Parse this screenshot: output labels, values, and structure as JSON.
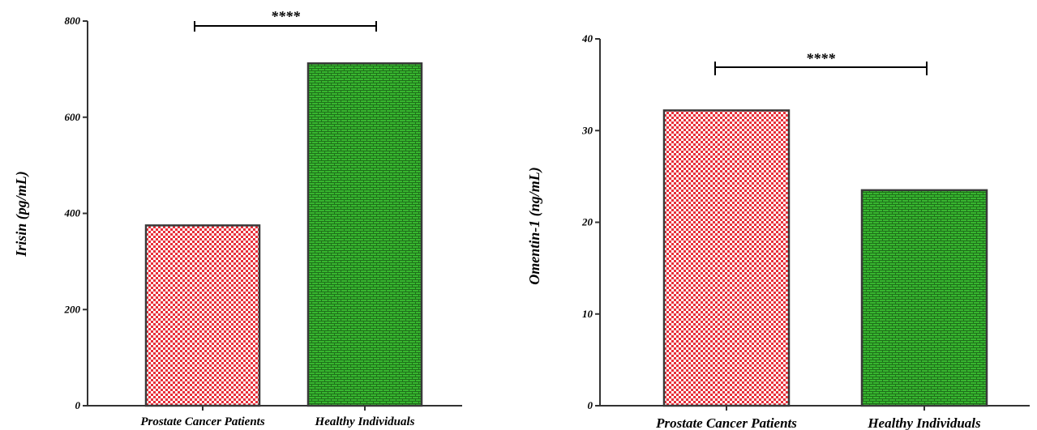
{
  "chart_data": [
    {
      "type": "bar",
      "categories": [
        "Prostate Cancer Patients",
        "Healthy Individuals"
      ],
      "values": [
        375,
        712
      ],
      "bar_colors": [
        "#e8303a",
        "#37b52f"
      ],
      "ylabel": "Irisin (pg/mL)",
      "xlabel": "",
      "ylim": [
        0,
        800
      ],
      "yticks": [
        0,
        200,
        400,
        600,
        800
      ],
      "significance": "****",
      "grid": false
    },
    {
      "type": "bar",
      "categories": [
        "Prostate Cancer Patients",
        "Healthy Individuals"
      ],
      "values": [
        32.2,
        23.5
      ],
      "bar_colors": [
        "#e8303a",
        "#37b52f"
      ],
      "ylabel": "Omentin-1 (ng/mL)",
      "xlabel": "",
      "ylim": [
        0,
        40
      ],
      "yticks": [
        0,
        10,
        20,
        30,
        40
      ],
      "significance": "****",
      "grid": false
    }
  ]
}
